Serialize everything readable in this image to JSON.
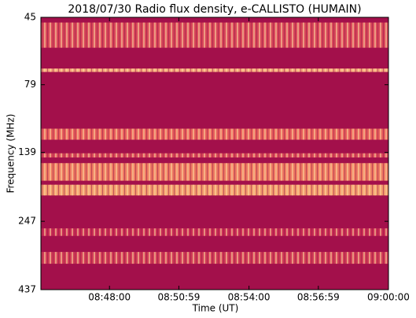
{
  "chart_data": {
    "type": "spectrogram",
    "title": "2018/07/30  Radio flux density, e-CALLISTO (HUMAIN)",
    "x_label": "Time (UT)",
    "y_label": "Frequency (MHz)",
    "xlim": [
      "08:45:03",
      "09:00:00"
    ],
    "xticks": [
      "08:48:00",
      "08:50:59",
      "08:54:00",
      "08:56:59",
      "09:00:00"
    ],
    "ylim": [
      45,
      437
    ],
    "y_log": true,
    "y_inverted": true,
    "yticks": [
      45,
      79,
      139,
      247,
      437
    ],
    "background_color": "#a3104b",
    "bands": [
      {
        "from": 47,
        "to": 58,
        "color": "#d9485a"
      },
      {
        "from": 69,
        "to": 71,
        "color": "#f5a37a"
      },
      {
        "from": 114,
        "to": 125,
        "color": "#e8605c"
      },
      {
        "from": 140,
        "to": 145,
        "color": "#d9485a"
      },
      {
        "from": 152,
        "to": 176,
        "color": "#ee7a62"
      },
      {
        "from": 182,
        "to": 199,
        "color": "#f29a6c"
      },
      {
        "from": 262,
        "to": 279,
        "color": "#c92d55"
      },
      {
        "from": 319,
        "to": 352,
        "color": "#d13c57"
      }
    ]
  }
}
